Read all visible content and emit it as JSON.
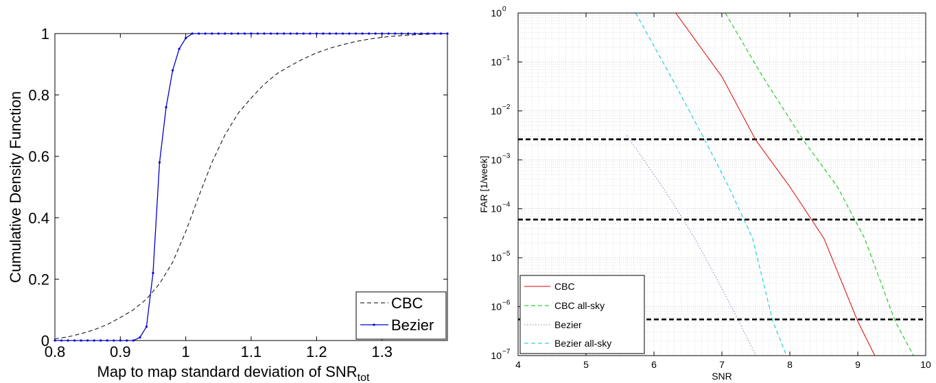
{
  "chart_data": [
    {
      "type": "line",
      "xlabel": "Map to map standard deviation of SNR",
      "xlabel_sub": "tot",
      "ylabel": "Cumulative Density Function",
      "xlim": [
        0.8,
        1.4
      ],
      "ylim": [
        0,
        1
      ],
      "xticks": [
        0.8,
        0.9,
        1.0,
        1.1,
        1.2,
        1.3
      ],
      "xtick_labels": [
        "0.8",
        "0.9",
        "1",
        "1.1",
        "1.2",
        "1.3"
      ],
      "yticks": [
        0,
        0.2,
        0.4,
        0.6,
        0.8,
        1
      ],
      "ytick_labels": [
        "0",
        "0.2",
        "0.4",
        "0.6",
        "0.8",
        "1"
      ],
      "grid": false,
      "legend": "bottom-right",
      "series": [
        {
          "name": "CBC",
          "color": "#000000",
          "style": "dashed",
          "x": [
            0.8,
            0.82,
            0.84,
            0.86,
            0.88,
            0.9,
            0.92,
            0.94,
            0.96,
            0.98,
            1.0,
            1.02,
            1.04,
            1.06,
            1.08,
            1.1,
            1.12,
            1.14,
            1.16,
            1.18,
            1.2,
            1.22,
            1.24,
            1.26,
            1.28,
            1.3,
            1.32,
            1.34,
            1.36,
            1.38,
            1.4
          ],
          "y": [
            0.005,
            0.012,
            0.022,
            0.035,
            0.052,
            0.075,
            0.1,
            0.135,
            0.185,
            0.255,
            0.355,
            0.47,
            0.58,
            0.67,
            0.74,
            0.79,
            0.835,
            0.87,
            0.895,
            0.918,
            0.937,
            0.952,
            0.964,
            0.974,
            0.982,
            0.988,
            0.992,
            0.995,
            0.997,
            0.999,
            1.0
          ]
        },
        {
          "name": "Bezier",
          "color": "#0000c8",
          "style": "solid-dots",
          "x": [
            0.8,
            0.81,
            0.82,
            0.83,
            0.84,
            0.85,
            0.86,
            0.87,
            0.88,
            0.89,
            0.9,
            0.91,
            0.92,
            0.93,
            0.94,
            0.95,
            0.96,
            0.97,
            0.98,
            0.99,
            1.0,
            1.01,
            1.02,
            1.03,
            1.04,
            1.05,
            1.06,
            1.07,
            1.08,
            1.09,
            1.1,
            1.11,
            1.12,
            1.13,
            1.14,
            1.15,
            1.16,
            1.17,
            1.18,
            1.19,
            1.2,
            1.21,
            1.22,
            1.23,
            1.24,
            1.25,
            1.26,
            1.27,
            1.28,
            1.29,
            1.3,
            1.31,
            1.32,
            1.33,
            1.34,
            1.35,
            1.36,
            1.37,
            1.38,
            1.39,
            1.4
          ],
          "y": [
            0,
            0,
            0,
            0,
            0,
            0,
            0,
            0,
            0,
            0,
            0,
            0,
            0,
            0.01,
            0.045,
            0.22,
            0.58,
            0.76,
            0.88,
            0.95,
            0.985,
            1,
            1,
            1,
            1,
            1,
            1,
            1,
            1,
            1,
            1,
            1,
            1,
            1,
            1,
            1,
            1,
            1,
            1,
            1,
            1,
            1,
            1,
            1,
            1,
            1,
            1,
            1,
            1,
            1,
            1,
            1,
            1,
            1,
            1,
            1,
            1,
            1,
            1,
            1,
            1
          ]
        }
      ]
    },
    {
      "type": "line",
      "xlabel": "SNR",
      "ylabel": "FAR [1/week]",
      "xlim": [
        4,
        10
      ],
      "ylim_exp": [
        -7,
        0
      ],
      "yscale": "log",
      "xticks": [
        4,
        5,
        6,
        7,
        8,
        9,
        10
      ],
      "xtick_labels": [
        "4",
        "5",
        "6",
        "7",
        "8",
        "9",
        "10"
      ],
      "yticks_exp": [
        0,
        -1,
        -2,
        -3,
        -4,
        -5,
        -6,
        -7
      ],
      "ytick_base": "10",
      "ytick_exponents": [
        "0",
        "−1",
        "−2",
        "−3",
        "−4",
        "−5",
        "−6",
        "−7"
      ],
      "grid": true,
      "legend": "bottom-left",
      "series": [
        {
          "name": "CBC",
          "color": "#e00000",
          "style": "solid",
          "x": [
            6.32,
            7.0,
            7.5,
            8.0,
            8.5,
            9.0,
            9.25
          ],
          "log10y": [
            0,
            -1.3,
            -2.6,
            -3.55,
            -4.6,
            -6.3,
            -7
          ]
        },
        {
          "name": "CBC all-sky",
          "color": "#00c000",
          "style": "dashed",
          "x": [
            7.05,
            7.6,
            8.2,
            8.7,
            9.1,
            9.55,
            9.82
          ],
          "log10y": [
            0,
            -1.3,
            -2.6,
            -3.55,
            -4.6,
            -6.3,
            -7
          ]
        },
        {
          "name": "Bezier",
          "color": "#8080c0",
          "style": "dotted",
          "x": [
            5.6,
            6.15,
            6.6,
            6.95,
            7.25,
            7.5
          ],
          "log10y": [
            -2.5,
            -3.6,
            -4.6,
            -5.5,
            -6.3,
            -7
          ]
        },
        {
          "name": "Bezier all-sky",
          "color": "#00c8c8",
          "style": "dashed",
          "x": [
            5.73,
            6.25,
            6.75,
            7.1,
            7.45,
            7.75,
            7.95
          ],
          "log10y": [
            0,
            -1.3,
            -2.6,
            -3.55,
            -4.6,
            -6.3,
            -7
          ]
        }
      ],
      "threshold_lines": [
        {
          "log10y": -2.58,
          "color": "#000000",
          "style": "thick-dashed"
        },
        {
          "log10y": -4.22,
          "color": "#000000",
          "style": "thick-dashed"
        },
        {
          "log10y": -6.26,
          "color": "#000000",
          "style": "thick-dashed"
        }
      ]
    }
  ]
}
